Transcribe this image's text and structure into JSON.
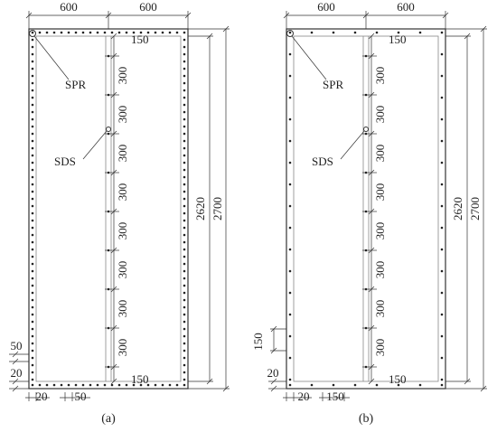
{
  "panels": [
    {
      "caption": "(a)",
      "top_dims": [
        "600",
        "600"
      ],
      "inner_height": "2620",
      "height": "2700",
      "stud_spacing": [
        "300",
        "300",
        "300",
        "300",
        "300",
        "300",
        "300",
        "300"
      ],
      "stud_end_top": "150",
      "stud_end_bottom": "150",
      "left_dims": [
        "50",
        "20"
      ],
      "bottom_dims": [
        "20",
        "50"
      ],
      "callouts": [
        "SPR",
        "SDS"
      ]
    },
    {
      "caption": "(b)",
      "top_dims": [
        "600",
        "600"
      ],
      "inner_height": "2620",
      "height": "2700",
      "stud_spacing": [
        "300",
        "300",
        "300",
        "300",
        "300",
        "300",
        "300",
        "300"
      ],
      "stud_end_top": "150",
      "stud_end_bottom": "150",
      "left_dims": [
        "150",
        "20"
      ],
      "bottom_dims": [
        "20",
        "150"
      ],
      "callouts": [
        "SPR",
        "SDS"
      ]
    }
  ]
}
